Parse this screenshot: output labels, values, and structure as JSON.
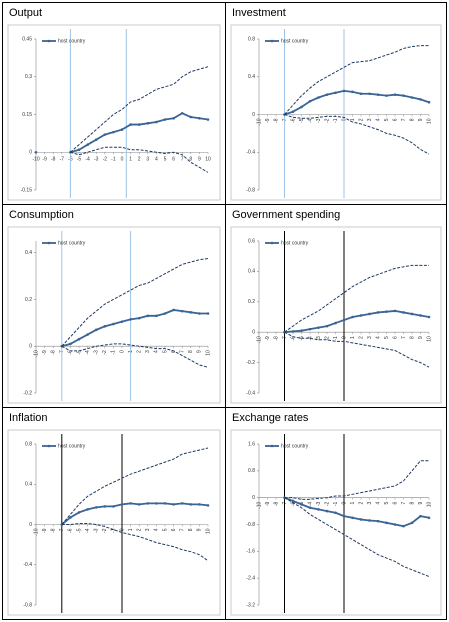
{
  "chart_data": [
    {
      "type": "line",
      "title": "Output",
      "x": [
        -10,
        -9,
        -8,
        -7,
        -6,
        -5,
        -4,
        -3,
        -2,
        -1,
        0,
        1,
        2,
        3,
        4,
        5,
        6,
        7,
        8,
        9,
        10
      ],
      "ylim": [
        -0.15,
        0.45
      ],
      "yticks": [
        -0.15,
        0,
        0.15,
        0.3,
        0.45
      ],
      "vlines": [
        -6,
        0.5
      ],
      "vline_color": "#9dc3e6",
      "legend": "upper left",
      "series": [
        {
          "name": "host country",
          "color": "#3a6494",
          "style": "solid",
          "values": [
            0,
            null,
            null,
            null,
            0,
            0.01,
            0.03,
            0.05,
            0.07,
            0.08,
            0.09,
            0.11,
            0.11,
            0.115,
            0.12,
            0.13,
            0.135,
            0.155,
            0.14,
            0.135,
            0.13
          ]
        },
        {
          "color": "#203864",
          "style": "dashed",
          "values": [
            null,
            null,
            null,
            null,
            0,
            0.03,
            0.06,
            0.09,
            0.12,
            0.15,
            0.17,
            0.2,
            0.21,
            0.23,
            0.25,
            0.26,
            0.27,
            0.3,
            0.32,
            0.33,
            0.34
          ]
        },
        {
          "color": "#203864",
          "style": "dashed",
          "values": [
            null,
            null,
            null,
            null,
            0,
            -0.01,
            0,
            0.01,
            0.02,
            0.02,
            0.02,
            0.01,
            0.01,
            0.005,
            0,
            -0.005,
            0,
            -0.01,
            -0.04,
            -0.06,
            -0.08
          ]
        }
      ]
    },
    {
      "type": "line",
      "title": "Investment",
      "x": [
        -10,
        -9,
        -8,
        -7,
        -6,
        -5,
        -4,
        -3,
        -2,
        -1,
        0,
        1,
        2,
        3,
        4,
        5,
        6,
        7,
        8,
        9,
        10
      ],
      "ylim": [
        -0.8,
        0.8
      ],
      "yticks": [
        -0.8,
        -0.4,
        0,
        0.4,
        0.8
      ],
      "vlines": [
        -7,
        0
      ],
      "vline_color": "#9dc3e6",
      "legend": "upper left",
      "series": [
        {
          "name": "host country",
          "color": "#3a6494",
          "style": "solid",
          "values": [
            null,
            null,
            null,
            0,
            0.03,
            0.08,
            0.14,
            0.18,
            0.21,
            0.23,
            0.25,
            0.24,
            0.22,
            0.22,
            0.21,
            0.2,
            0.21,
            0.2,
            0.18,
            0.16,
            0.13
          ]
        },
        {
          "color": "#203864",
          "style": "dashed",
          "values": [
            null,
            null,
            null,
            0,
            0.1,
            0.2,
            0.28,
            0.35,
            0.4,
            0.45,
            0.5,
            0.55,
            0.56,
            0.57,
            0.6,
            0.63,
            0.66,
            0.7,
            0.72,
            0.73,
            0.73
          ]
        },
        {
          "color": "#203864",
          "style": "dashed",
          "values": [
            null,
            null,
            null,
            0,
            -0.03,
            -0.04,
            -0.04,
            -0.03,
            -0.02,
            -0.02,
            -0.03,
            -0.08,
            -0.1,
            -0.13,
            -0.16,
            -0.2,
            -0.22,
            -0.25,
            -0.3,
            -0.37,
            -0.42
          ]
        }
      ]
    },
    {
      "type": "line",
      "title": "Consumption",
      "x": [
        -10,
        -9,
        -8,
        -7,
        -6,
        -5,
        -4,
        -3,
        -2,
        -1,
        0,
        1,
        2,
        3,
        4,
        5,
        6,
        7,
        8,
        9,
        10
      ],
      "ylim": [
        -0.2,
        0.45
      ],
      "yticks": [
        -0.2,
        0,
        0.2,
        0.4
      ],
      "vlines": [
        -7,
        1
      ],
      "vline_color": "#9dc3e6",
      "legend": "upper left",
      "series": [
        {
          "name": "host country",
          "color": "#3a6494",
          "style": "solid",
          "values": [
            null,
            null,
            null,
            0,
            0.01,
            0.03,
            0.05,
            0.07,
            0.085,
            0.095,
            0.105,
            0.115,
            0.12,
            0.13,
            0.13,
            0.14,
            0.155,
            0.15,
            0.145,
            0.14,
            0.14
          ]
        },
        {
          "color": "#203864",
          "style": "dashed",
          "values": [
            null,
            null,
            null,
            0,
            0.04,
            0.08,
            0.12,
            0.15,
            0.18,
            0.2,
            0.22,
            0.24,
            0.26,
            0.27,
            0.29,
            0.31,
            0.33,
            0.35,
            0.36,
            0.37,
            0.375
          ]
        },
        {
          "color": "#203864",
          "style": "dashed",
          "values": [
            null,
            null,
            null,
            0,
            -0.02,
            -0.02,
            -0.01,
            0,
            0.005,
            0.01,
            0.01,
            0.005,
            0,
            -0.005,
            -0.01,
            -0.01,
            -0.02,
            -0.04,
            -0.06,
            -0.08,
            -0.09
          ]
        }
      ]
    },
    {
      "type": "line",
      "title": "Government spending",
      "x": [
        -10,
        -9,
        -8,
        -7,
        -6,
        -5,
        -4,
        -3,
        -2,
        -1,
        0,
        1,
        2,
        3,
        4,
        5,
        6,
        7,
        8,
        9,
        10
      ],
      "ylim": [
        -0.4,
        0.6
      ],
      "yticks": [
        -0.4,
        -0.2,
        0,
        0.2,
        0.4,
        0.6
      ],
      "vlines": [
        -7,
        0
      ],
      "vline_color": "#000000",
      "legend": "upper left",
      "series": [
        {
          "name": "host country",
          "color": "#3a6494",
          "style": "solid",
          "values": [
            null,
            null,
            null,
            0,
            0.005,
            0.01,
            0.02,
            0.03,
            0.04,
            0.06,
            0.08,
            0.1,
            0.11,
            0.12,
            0.13,
            0.135,
            0.14,
            0.13,
            0.12,
            0.11,
            0.1
          ]
        },
        {
          "color": "#203864",
          "style": "dashed",
          "values": [
            null,
            null,
            null,
            0,
            0.04,
            0.08,
            0.11,
            0.14,
            0.18,
            0.22,
            0.26,
            0.3,
            0.33,
            0.36,
            0.38,
            0.4,
            0.42,
            0.43,
            0.44,
            0.44,
            0.44
          ]
        },
        {
          "color": "#203864",
          "style": "dashed",
          "values": [
            null,
            null,
            null,
            0,
            -0.03,
            -0.04,
            -0.04,
            -0.05,
            -0.05,
            -0.06,
            -0.06,
            -0.07,
            -0.08,
            -0.09,
            -0.1,
            -0.11,
            -0.12,
            -0.15,
            -0.18,
            -0.2,
            -0.23
          ]
        }
      ]
    },
    {
      "type": "line",
      "title": "Inflation",
      "x": [
        -10,
        -9,
        -8,
        -7,
        -6,
        -5,
        -4,
        -3,
        -2,
        -1,
        0,
        1,
        2,
        3,
        4,
        5,
        6,
        7,
        8,
        9,
        10
      ],
      "ylim": [
        -0.8,
        0.8
      ],
      "yticks": [
        -0.8,
        -0.4,
        0,
        0.4,
        0.8
      ],
      "vlines": [
        -7,
        0
      ],
      "vline_color": "#000000",
      "legend": "upper left",
      "series": [
        {
          "name": "host country",
          "color": "#3a6494",
          "style": "solid",
          "values": [
            null,
            null,
            null,
            0,
            0.07,
            0.12,
            0.15,
            0.17,
            0.18,
            0.18,
            0.2,
            0.21,
            0.2,
            0.21,
            0.21,
            0.21,
            0.2,
            0.21,
            0.2,
            0.2,
            0.19
          ]
        },
        {
          "color": "#203864",
          "style": "dashed",
          "values": [
            null,
            null,
            null,
            0,
            0.1,
            0.2,
            0.28,
            0.33,
            0.38,
            0.42,
            0.46,
            0.5,
            0.53,
            0.56,
            0.59,
            0.62,
            0.65,
            0.7,
            0.72,
            0.74,
            0.76
          ]
        },
        {
          "color": "#203864",
          "style": "dashed",
          "values": [
            null,
            null,
            null,
            0,
            0,
            0.01,
            0.01,
            0,
            -0.02,
            -0.05,
            -0.08,
            -0.1,
            -0.12,
            -0.15,
            -0.18,
            -0.2,
            -0.22,
            -0.25,
            -0.27,
            -0.3,
            -0.36
          ]
        }
      ]
    },
    {
      "type": "line",
      "title": "Exchange rates",
      "x": [
        -10,
        -9,
        -8,
        -7,
        -6,
        -5,
        -4,
        -3,
        -2,
        -1,
        0,
        1,
        2,
        3,
        4,
        5,
        6,
        7,
        8,
        9,
        10
      ],
      "ylim": [
        -3.2,
        1.6
      ],
      "yticks": [
        -3.2,
        -2.4,
        -1.6,
        -0.8,
        0,
        0.8,
        1.6
      ],
      "vlines": [
        -7,
        0
      ],
      "vline_color": "#000000",
      "legend": "upper left",
      "series": [
        {
          "name": "host country",
          "color": "#3a6494",
          "style": "solid",
          "values": [
            null,
            null,
            null,
            0,
            -0.1,
            -0.2,
            -0.3,
            -0.35,
            -0.4,
            -0.45,
            -0.55,
            -0.6,
            -0.65,
            -0.68,
            -0.7,
            -0.75,
            -0.8,
            -0.85,
            -0.75,
            -0.55,
            -0.6
          ]
        },
        {
          "color": "#203864",
          "style": "dashed",
          "values": [
            null,
            null,
            null,
            0,
            0,
            -0.05,
            -0.05,
            -0.02,
            0,
            0.05,
            0.05,
            0.1,
            0.15,
            0.2,
            0.25,
            0.3,
            0.35,
            0.5,
            0.8,
            1.1,
            1.1
          ]
        },
        {
          "color": "#203864",
          "style": "dashed",
          "values": [
            null,
            null,
            null,
            0,
            -0.15,
            -0.3,
            -0.5,
            -0.65,
            -0.8,
            -0.95,
            -1.1,
            -1.25,
            -1.4,
            -1.55,
            -1.7,
            -1.8,
            -1.9,
            -2.05,
            -2.15,
            -2.25,
            -2.35
          ]
        }
      ]
    }
  ]
}
